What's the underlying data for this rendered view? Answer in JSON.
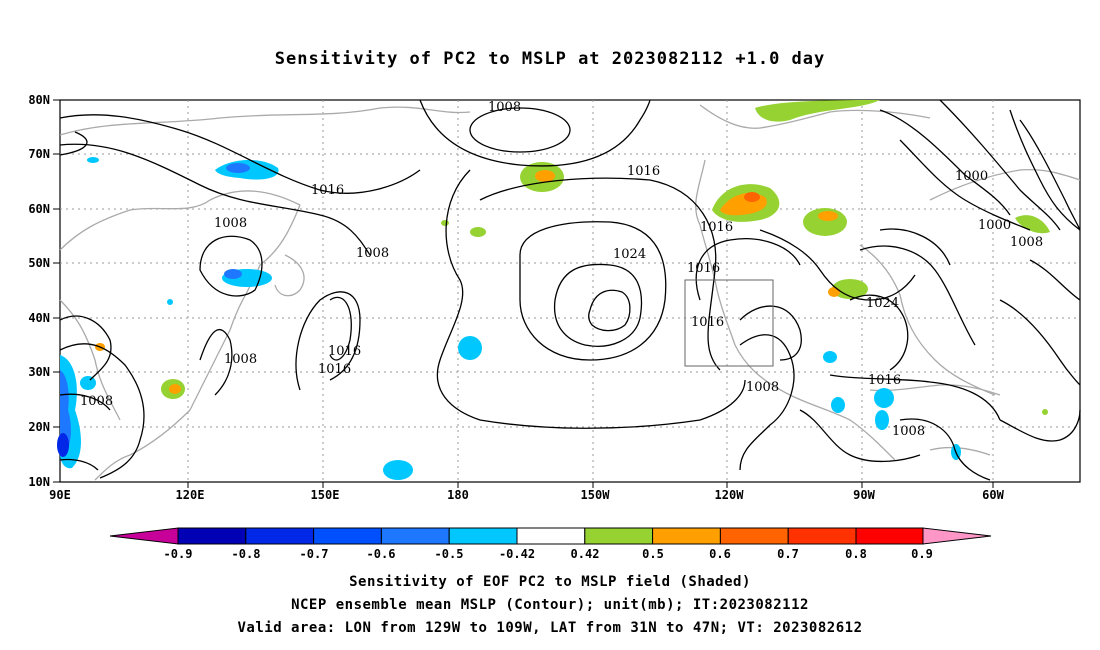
{
  "title": "Sensitivity of PC2 to MSLP at 2023082112 +1.0 day",
  "lat_ticks": [
    "80N",
    "70N",
    "60N",
    "50N",
    "40N",
    "30N",
    "20N",
    "10N"
  ],
  "lon_ticks": [
    "90E",
    "120E",
    "150E",
    "180",
    "150W",
    "120W",
    "90W",
    "60W"
  ],
  "contour_labels": [
    "1008",
    "1016",
    "1008",
    "1008",
    "1016",
    "1016",
    "1008",
    "1016",
    "1024",
    "1016",
    "1016",
    "1016",
    "1008",
    "1016",
    "1008",
    "1008",
    "1000",
    "1000",
    "1008",
    "1024",
    "1016"
  ],
  "colorbar": {
    "labels": [
      "-0.9",
      "-0.8",
      "-0.7",
      "-0.6",
      "-0.5",
      "-0.42",
      "0.42",
      "0.5",
      "0.6",
      "0.7",
      "0.8",
      "0.9"
    ],
    "colors": [
      "#c8009a",
      "#0000b4",
      "#0028e6",
      "#0050ff",
      "#1e78ff",
      "#00c8ff",
      "#ffffff",
      "#96d232",
      "#ffa000",
      "#ff6400",
      "#ff3200",
      "#ff0000",
      "#ff96c8"
    ]
  },
  "captions": [
    "Sensitivity of EOF PC2 to MSLP field (Shaded)",
    "NCEP ensemble mean MSLP (Contour); unit(mb); IT:2023082112",
    "Valid area: LON from 129W to 109W, LAT from 31N to 47N; VT: 2023082612"
  ],
  "valid_area": {
    "lon_min": "129W",
    "lon_max": "109W",
    "lat_min": "31N",
    "lat_max": "47N"
  },
  "shading_colors": {
    "blue": "#1e78ff",
    "cyan": "#00c8ff",
    "green": "#96d232",
    "orange": "#ffa000",
    "red": "#ff6400"
  }
}
